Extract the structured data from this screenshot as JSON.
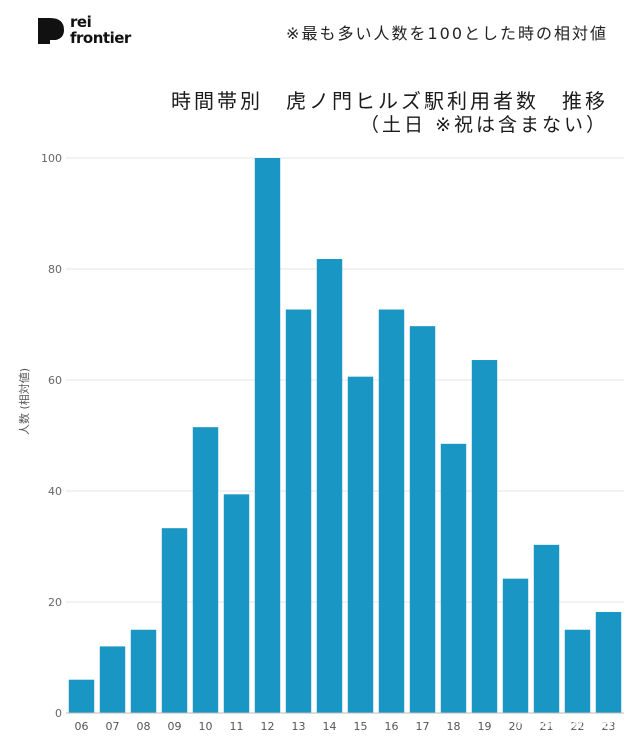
{
  "logo": {
    "line1": "rei",
    "line2": "frontier"
  },
  "note": "※最も多い人数を100とした時の相対値",
  "title": "時間帯別　虎ノ門ヒルズ駅利用者数　推移",
  "subtitle": "（土日 ※祝は含まない）",
  "watermark": "Response.",
  "chart_data": {
    "type": "bar",
    "title": "時間帯別　虎ノ門ヒルズ駅利用者数　推移",
    "xlabel": "",
    "ylabel": "人数 (相対値)",
    "categories": [
      "06",
      "07",
      "08",
      "09",
      "10",
      "11",
      "12",
      "13",
      "14",
      "15",
      "16",
      "17",
      "18",
      "19",
      "20",
      "21",
      "22",
      "23"
    ],
    "values": [
      6,
      12,
      15,
      33.3,
      51.5,
      39.4,
      100,
      72.7,
      81.8,
      60.6,
      72.7,
      69.7,
      48.5,
      63.6,
      24.2,
      30.3,
      15,
      18.2
    ],
    "ylim": [
      0,
      100
    ],
    "yticks": [
      0,
      20,
      40,
      60,
      80,
      100
    ],
    "grid": true,
    "bar_color": "#1a96c4",
    "grid_color": "#e6e6e6"
  }
}
